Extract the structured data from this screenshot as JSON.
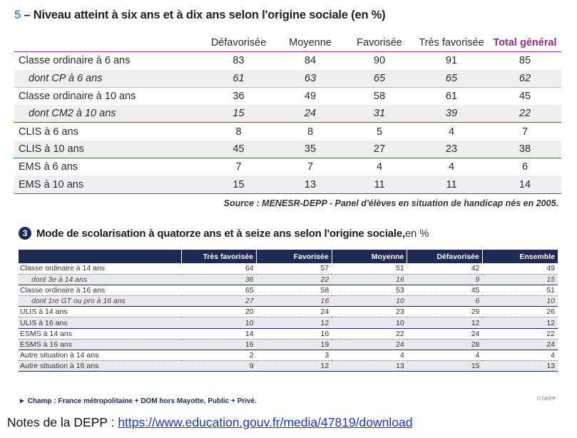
{
  "table1": {
    "number": "5",
    "title": " – Niveau atteint à six ans et à dix ans selon l'origine sociale (en %)",
    "headers": [
      "Défavorisée",
      "Moyenne",
      "Favorisée",
      "Très favorisée",
      "Total général"
    ],
    "rows": [
      {
        "label": "Classe ordinaire à 6 ans",
        "values": [
          "83",
          "84",
          "90",
          "91",
          "85"
        ]
      },
      {
        "label": "dont CP à 6 ans",
        "values": [
          "61",
          "63",
          "65",
          "65",
          "62"
        ]
      },
      {
        "label": "Classe ordinaire à 10 ans",
        "values": [
          "36",
          "49",
          "58",
          "61",
          "45"
        ]
      },
      {
        "label": "dont CM2 à 10 ans",
        "values": [
          "15",
          "24",
          "31",
          "39",
          "22"
        ]
      },
      {
        "label": "CLIS à 6 ans",
        "values": [
          "8",
          "8",
          "5",
          "4",
          "7"
        ]
      },
      {
        "label": "CLIS à 10 ans",
        "values": [
          "45",
          "35",
          "27",
          "23",
          "38"
        ]
      },
      {
        "label": "EMS à 6 ans",
        "values": [
          "7",
          "7",
          "4",
          "4",
          "6"
        ]
      },
      {
        "label": "EMS à 10 ans",
        "values": [
          "15",
          "13",
          "11",
          "11",
          "14"
        ]
      }
    ],
    "source": "Source : MENESR-DEPP - Panel d'élèves en situation de handicap nés en 2005."
  },
  "table2": {
    "badge": "3",
    "title": "Mode de scolarisation à quatorze ans et à seize ans selon l'origine sociale,",
    "unit": " en %",
    "headers": [
      "",
      "Très favorisée",
      "Favorisée",
      "Moyenne",
      "Défavorisée",
      "Ensemble"
    ],
    "rows": [
      {
        "label": "Classe ordinaire à 14 ans",
        "values": [
          "64",
          "57",
          "51",
          "42",
          "49"
        ]
      },
      {
        "label": "dont 3e à 14 ans",
        "values": [
          "36",
          "22",
          "16",
          "9",
          "15"
        ]
      },
      {
        "label": "Classe ordinaire à 16 ans",
        "values": [
          "65",
          "58",
          "53",
          "45",
          "51"
        ]
      },
      {
        "label": "dont 1re GT ou pro à 16 ans",
        "values": [
          "27",
          "16",
          "10",
          "6",
          "10"
        ]
      },
      {
        "label": "ULIS à 14 ans",
        "values": [
          "20",
          "24",
          "23",
          "29",
          "26"
        ]
      },
      {
        "label": "ULIS à 16 ans",
        "values": [
          "10",
          "12",
          "10",
          "12",
          "12"
        ]
      },
      {
        "label": "ESMS à 14 ans",
        "values": [
          "14",
          "16",
          "22",
          "24",
          "22"
        ]
      },
      {
        "label": "ESMS à 16 ans",
        "values": [
          "16",
          "19",
          "24",
          "28",
          "24"
        ]
      },
      {
        "label": "Autre situation à 14 ans",
        "values": [
          "2",
          "3",
          "4",
          "4",
          "4"
        ]
      },
      {
        "label": "Autre situation à 16 ans",
        "values": [
          "9",
          "12",
          "13",
          "15",
          "13"
        ]
      }
    ],
    "champ": "► Champ : France métropolitaine + DOM hors Mayotte, Public + Privé.",
    "copyright": "© DEPP"
  },
  "note": {
    "prefix": "Notes de la DEPP : ",
    "link": "https://www.education.gouv.fr/media/47819/download"
  },
  "colors": {
    "purple": "#9b2a8f",
    "navy": "#1e2a55",
    "blue_number": "#4a90c8",
    "link": "#1a38c6"
  }
}
